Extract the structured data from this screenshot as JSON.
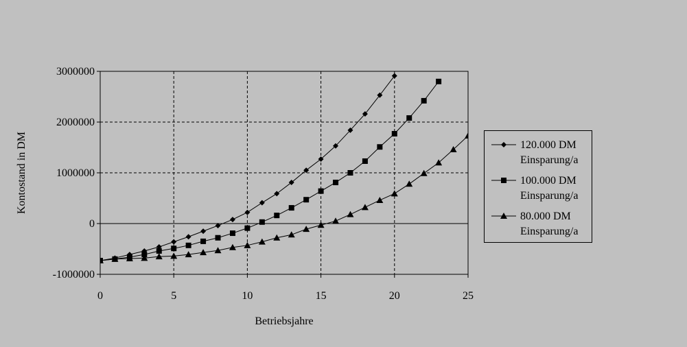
{
  "chart_data": {
    "type": "line",
    "x_label": "Betriebsjahre",
    "y_label": "Kontostand in DM",
    "xlim": [
      0,
      25
    ],
    "xticks": [
      0,
      5,
      10,
      15,
      20,
      25
    ],
    "ylim": [
      -1000000,
      3000000
    ],
    "yticks": [
      -1000000,
      0,
      1000000,
      2000000,
      3000000
    ],
    "grid": true,
    "series": [
      {
        "name": "120.000 DM Einsparung/a",
        "color": "#000000",
        "marker": "diamond",
        "x": [
          0,
          1,
          2,
          3,
          4,
          5,
          6,
          7,
          8,
          9,
          10,
          11,
          12,
          13,
          14,
          15,
          16,
          17,
          18,
          19,
          20
        ],
        "values": [
          -730000,
          -680000,
          -610000,
          -540000,
          -460000,
          -360000,
          -260000,
          -150000,
          -40000,
          80000,
          220000,
          410000,
          590000,
          810000,
          1050000,
          1270000,
          1530000,
          1840000,
          2160000,
          2530000,
          2910000
        ]
      },
      {
        "name": "100.000 DM Einsparung/a",
        "color": "#000000",
        "marker": "square",
        "x": [
          0,
          1,
          2,
          3,
          4,
          5,
          6,
          7,
          8,
          9,
          10,
          11,
          12,
          13,
          14,
          15,
          16,
          17,
          18,
          19,
          20,
          21,
          22,
          23
        ],
        "values": [
          -730000,
          -700000,
          -660000,
          -610000,
          -540000,
          -490000,
          -430000,
          -350000,
          -280000,
          -190000,
          -90000,
          30000,
          160000,
          310000,
          470000,
          640000,
          810000,
          1000000,
          1230000,
          1510000,
          1770000,
          2080000,
          2420000,
          2800000
        ]
      },
      {
        "name": "80.000 DM Einsparung/a",
        "color": "#000000",
        "marker": "triangle",
        "x": [
          0,
          1,
          2,
          3,
          4,
          5,
          6,
          7,
          8,
          9,
          10,
          11,
          12,
          13,
          14,
          15,
          16,
          17,
          18,
          19,
          20,
          21,
          22,
          23,
          24,
          25
        ],
        "values": [
          -730000,
          -700000,
          -690000,
          -680000,
          -650000,
          -640000,
          -610000,
          -570000,
          -530000,
          -470000,
          -430000,
          -360000,
          -280000,
          -220000,
          -110000,
          -30000,
          50000,
          180000,
          320000,
          460000,
          590000,
          780000,
          990000,
          1200000,
          1460000,
          1730000
        ]
      }
    ]
  }
}
